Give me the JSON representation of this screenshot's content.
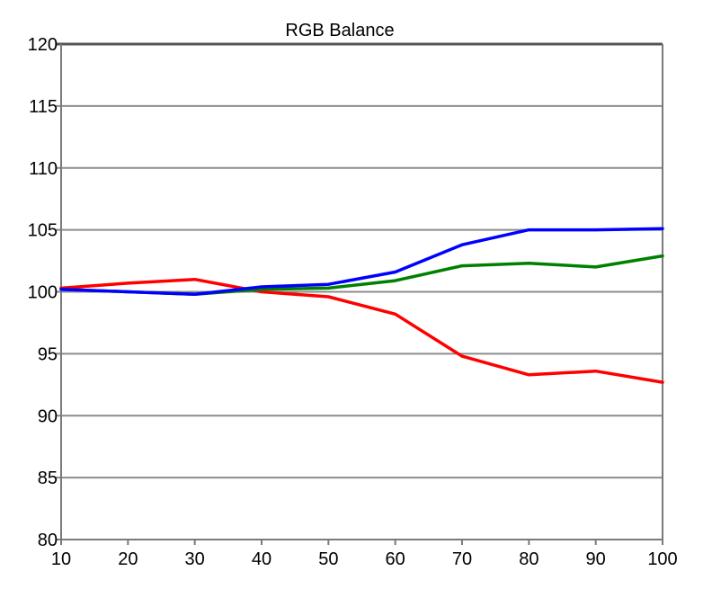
{
  "chart_data": {
    "type": "line",
    "title": "RGB Balance",
    "xlabel": "",
    "ylabel": "",
    "x": [
      10,
      20,
      30,
      40,
      50,
      60,
      70,
      80,
      90,
      100
    ],
    "xlim": [
      10,
      100
    ],
    "ylim": [
      80,
      120
    ],
    "xticks": [
      "10",
      "20",
      "30",
      "40",
      "50",
      "60",
      "70",
      "80",
      "90",
      "100"
    ],
    "yticks": [
      "80",
      "85",
      "90",
      "95",
      "100",
      "105",
      "110",
      "115",
      "120"
    ],
    "grid": "horizontal",
    "legend": "none",
    "series": [
      {
        "color": "#ff0000",
        "values": [
          100.3,
          100.7,
          101.0,
          100.0,
          99.6,
          98.2,
          94.8,
          93.3,
          93.6,
          92.7
        ]
      },
      {
        "color": "#008000",
        "values": [
          100.2,
          100.0,
          99.8,
          100.2,
          100.3,
          100.9,
          102.1,
          102.3,
          102.0,
          102.9
        ]
      },
      {
        "color": "#0000ff",
        "values": [
          100.2,
          100.0,
          99.8,
          100.4,
          100.6,
          101.6,
          103.8,
          105.0,
          105.0,
          105.1
        ]
      }
    ]
  }
}
